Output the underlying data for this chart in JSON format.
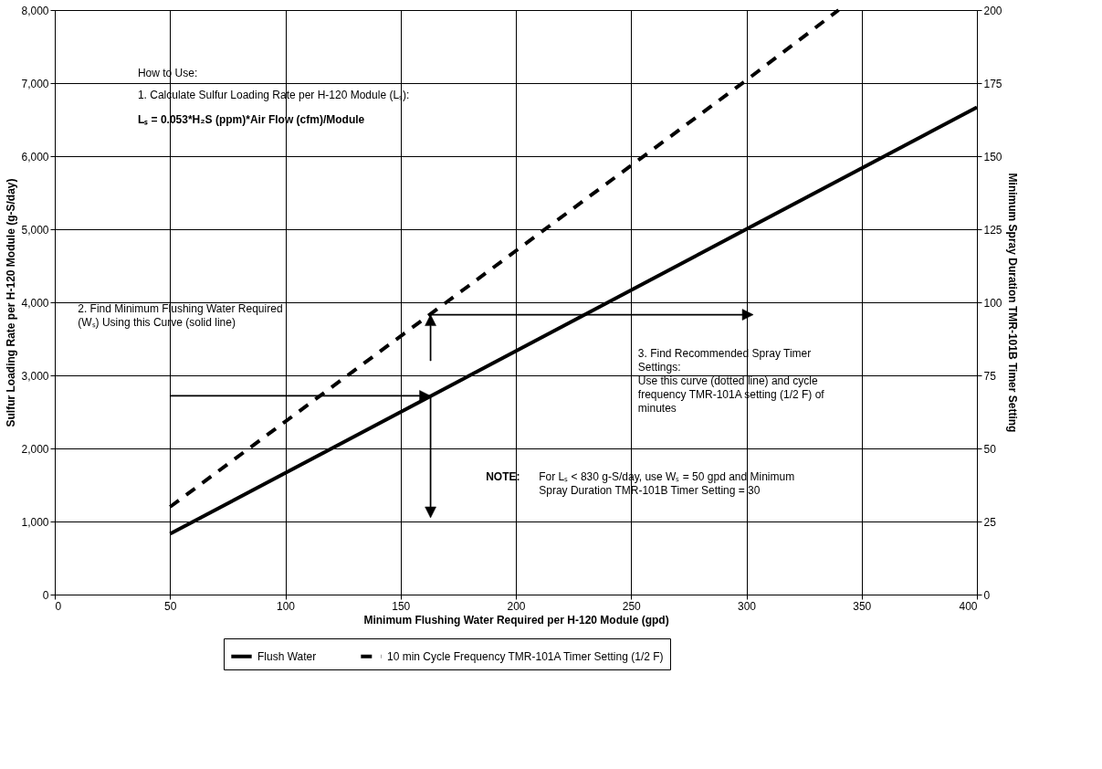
{
  "chart_data": {
    "type": "line",
    "xlabel": "Minimum Flushing Water Required per H-120 Module (gpd)",
    "ylabel": "Sulfur Loading Rate per H-120 Module (g-S/day)",
    "y2label": "Minimum Spray Duration TMR-101B Timer Setting",
    "x": [
      50,
      400
    ],
    "series": [
      {
        "name": "Flush Water",
        "color": "#000000",
        "values": [
          830,
          6670
        ],
        "line_style": "solid"
      },
      {
        "name": "10 min Cycle Frequency TMR-101A Timer Setting (1/2 F)",
        "color": "#000000",
        "axis": "y2",
        "x": [
          50,
          300,
          340
        ],
        "values": [
          30,
          176,
          200
        ],
        "line_style": "dashed"
      }
    ],
    "xlim": [
      0,
      400
    ],
    "xticks": [
      0,
      50,
      100,
      150,
      200,
      250,
      300,
      350,
      400
    ],
    "ylim": [
      0,
      8000
    ],
    "yticks": [
      0,
      {
        "value": 1000,
        "label": "1,000"
      },
      {
        "value": 2000,
        "label": "2,000"
      },
      {
        "value": 3000,
        "label": "3,000"
      },
      {
        "value": 4000,
        "label": "4,000"
      },
      {
        "value": 5000,
        "label": "5,000"
      },
      {
        "value": 6000,
        "label": "6,000"
      },
      {
        "value": 7000,
        "label": "7,000"
      },
      {
        "value": 8000,
        "label": "8,000"
      }
    ],
    "y2lim": [
      0,
      200
    ],
    "y2ticks": [
      0,
      25,
      50,
      75,
      100,
      125,
      150,
      175,
      200
    ],
    "grid": true,
    "legend": "bottom",
    "marker": "none",
    "annotations": [
      "How to Use:",
      "1. Calculate Sulfur Loading Rate per H-120 Module (Lₛ):",
      "Lₛ = 0.053*H₂S (ppm)*Air Flow (cfm)/Module",
      "2. Find Minimum Flushing Water Required\n(Wₛ) Using this Curve (solid line)",
      "3. Find Recommended Spray Timer\nSettings:\nUse this curve (dotted line) and cycle\nfrequency TMR-101A setting (1/2 F) of\nminutes",
      "NOTE:",
      "For Lₛ < 830 g-S/day, use Wₛ = 50 gpd and Minimum\nSpray Duration TMR-101B Timer Setting = 30"
    ]
  }
}
